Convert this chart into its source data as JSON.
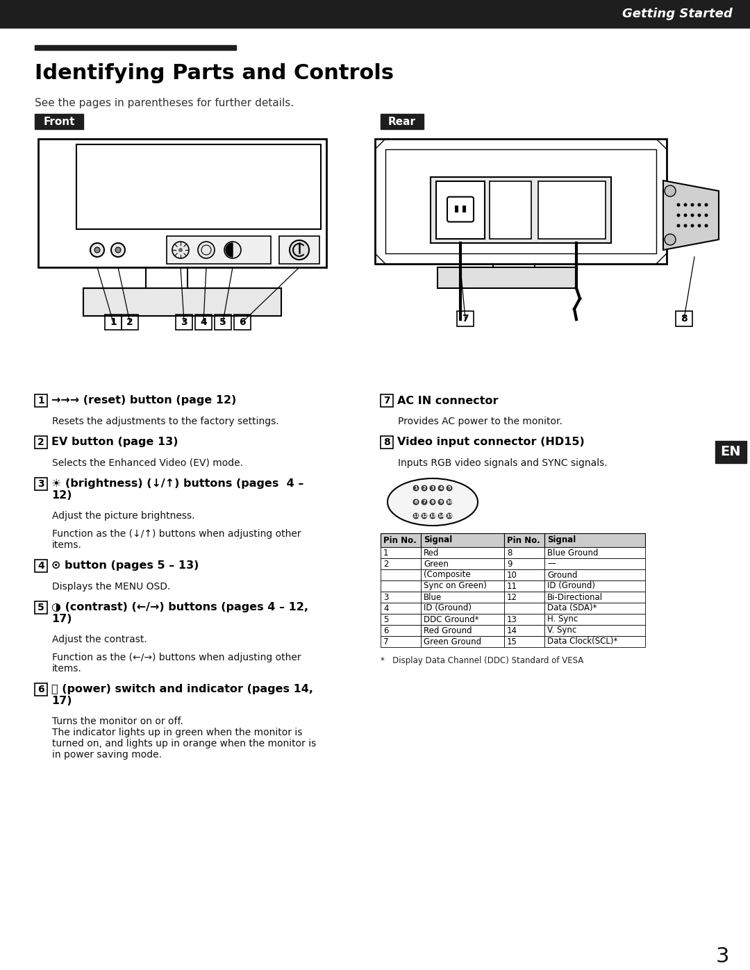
{
  "bg_color": "#ffffff",
  "header_bg": "#1e1e1e",
  "header_text": "Getting Started",
  "header_text_color": "#ffffff",
  "title": "Identifying Parts and Controls",
  "subtitle": "See the pages in parentheses for further details.",
  "front_label": "Front",
  "rear_label": "Rear",
  "en_label": "EN",
  "page_number": "3",
  "item1_bold": "→→→ (reset) button (page 12)",
  "item1_desc": "Resets the adjustments to the factory settings.",
  "item2_bold": "EV button (page 13)",
  "item2_desc": "Selects the Enhanced Video (EV) mode.",
  "item3_bold_l1": "☀ (brightness) (↓/↑) buttons (pages  4 –",
  "item3_bold_l2": "12)",
  "item3_desc1": "Adjust the picture brightness.",
  "item3_desc2": "Function as the (↓/↑) buttons when adjusting other",
  "item3_desc3": "items.",
  "item4_bold": "⊙ button (pages 5 – 13)",
  "item4_desc": "Displays the MENU OSD.",
  "item5_bold_l1": "◑ (contrast) (←/→) buttons (pages 4 – 12,",
  "item5_bold_l2": "17)",
  "item5_desc1": "Adjust the contrast.",
  "item5_desc2": "Function as the (←/→) buttons when adjusting other",
  "item5_desc3": "items.",
  "item6_bold_l1": "⏻ (power) switch and indicator (pages 14,",
  "item6_bold_l2": "17)",
  "item6_desc1": "Turns the monitor on or off.",
  "item6_desc2": "The indicator lights up in green when the monitor is",
  "item6_desc3": "turned on, and lights up in orange when the monitor is",
  "item6_desc4": "in power saving mode.",
  "item7_bold": "AC IN connector",
  "item7_desc": "Provides AC power to the monitor.",
  "item8_bold": "Video input connector (HD15)",
  "item8_desc": "Inputs RGB video signals and SYNC signals.",
  "footnote": "*   Display Data Channel (DDC) Standard of VESA",
  "pin_headers": [
    "Pin No.",
    "Signal",
    "Pin No.",
    "Signal"
  ],
  "pin_rows": [
    [
      "1",
      "Red",
      "8",
      "Blue Ground"
    ],
    [
      "2",
      "Green",
      "9",
      "—"
    ],
    [
      "",
      "(Composite",
      "10",
      "Ground"
    ],
    [
      "",
      "Sync on Green)",
      "11",
      "ID (Ground)"
    ],
    [
      "3",
      "Blue",
      "12",
      "Bi-Directional"
    ],
    [
      "4",
      "ID (Ground)",
      "",
      "Data (SDA)*"
    ],
    [
      "5",
      "DDC Ground*",
      "13",
      "H. Sync"
    ],
    [
      "6",
      "Red Ground",
      "14",
      "V. Sync"
    ],
    [
      "7",
      "Green Ground",
      "15",
      "Data Clock(SCL)*"
    ]
  ]
}
